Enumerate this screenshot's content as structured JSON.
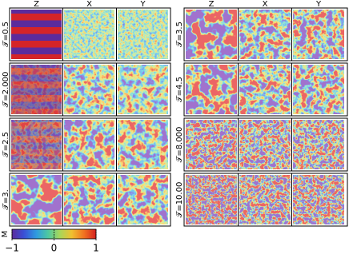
{
  "columns": [
    "Z",
    "X",
    "Y"
  ],
  "left_rows": [
    "𝒯=0.5",
    "𝒯=2.000",
    "𝒯=2.5",
    "𝒯=3."
  ],
  "right_rows": [
    "𝒯=3.5",
    "𝒯=4.5",
    "𝒯=8.000",
    "𝒯=10.00"
  ],
  "colorbar": {
    "label": "M",
    "lim": [
      -1,
      1
    ],
    "ticks": [
      {
        "value": -1,
        "label": "−1"
      },
      0,
      1
    ]
  }
}
